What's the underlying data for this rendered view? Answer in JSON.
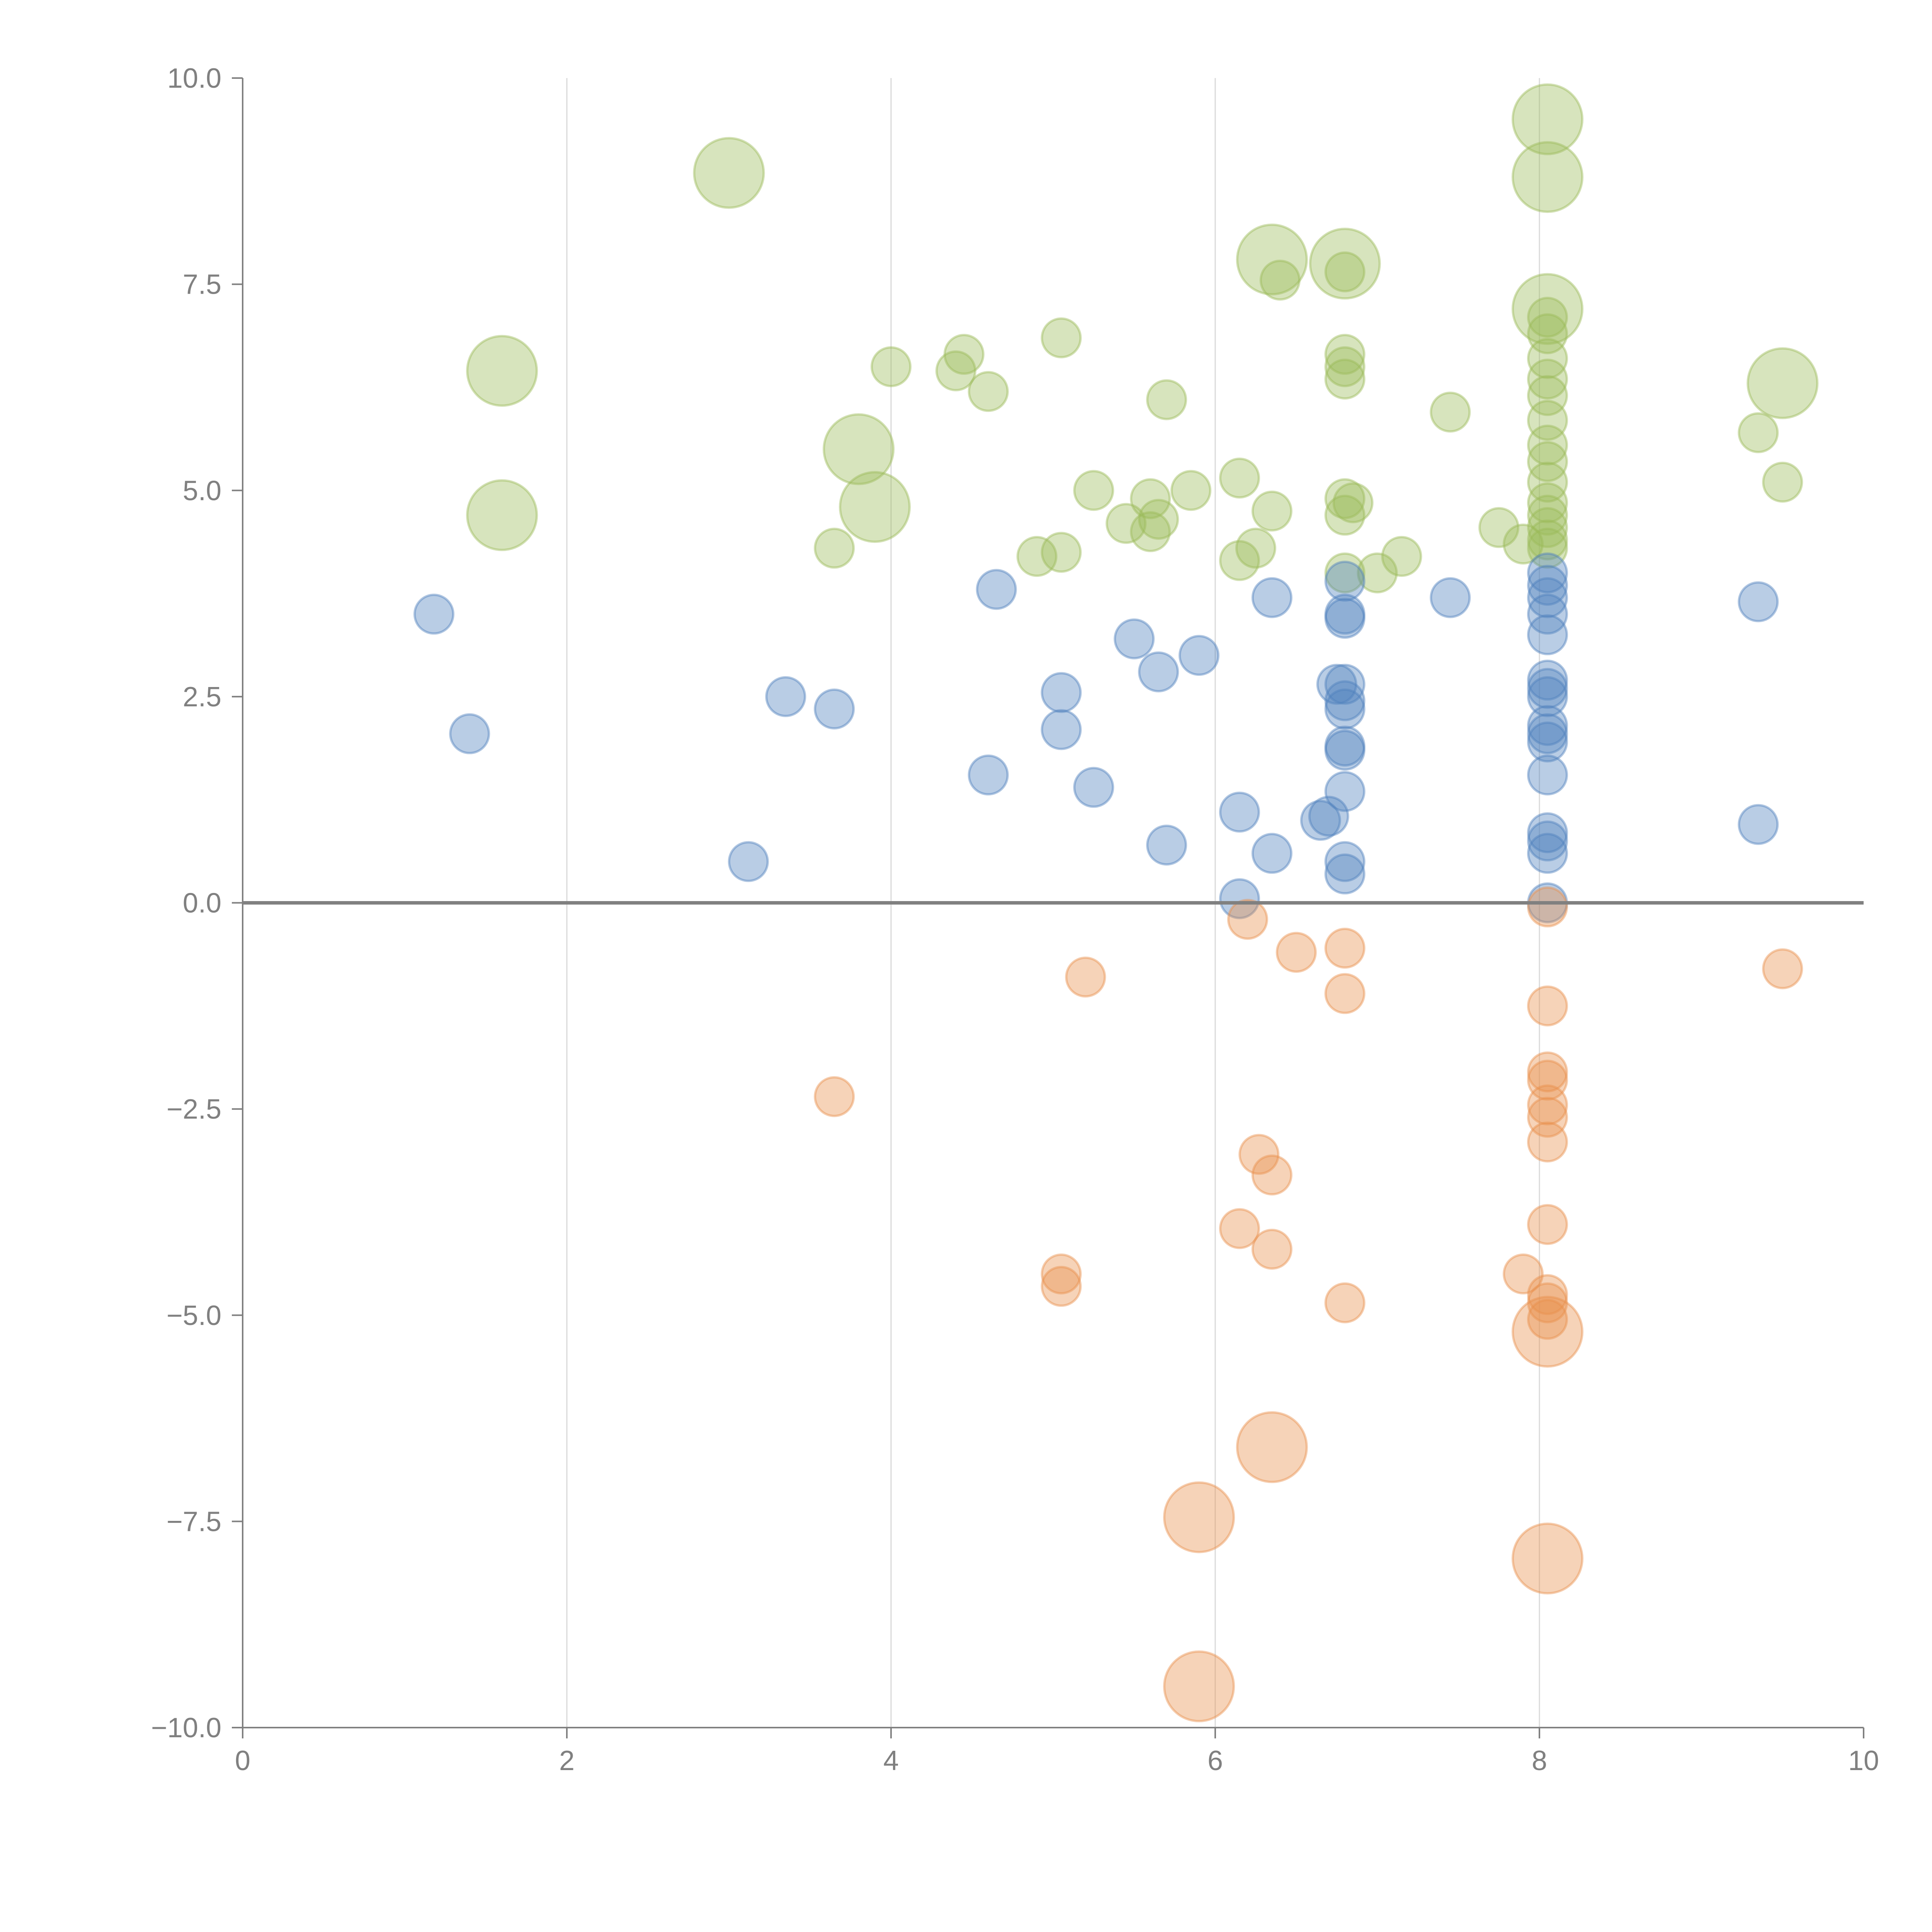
{
  "chart_data": {
    "type": "scatter",
    "subtype": "bubble",
    "title": "",
    "xlabel": "",
    "ylabel": "",
    "xlim": [
      0,
      10
    ],
    "ylim": [
      -10,
      10
    ],
    "x_ticks": [
      "0",
      "2",
      "4",
      "6",
      "8",
      "10"
    ],
    "y_ticks": [
      "10.0",
      "7.5",
      "5.0",
      "2.5",
      "0.0",
      "−2.5",
      "−5.0",
      "−7.5",
      "−10.0"
    ],
    "grid": "vertical",
    "legend": "none",
    "series": [
      {
        "name": "green",
        "color": "#9bbb59",
        "points": [
          {
            "x": 3.0,
            "y": 8.85,
            "s": 3
          },
          {
            "x": 1.6,
            "y": 6.45,
            "s": 3
          },
          {
            "x": 1.6,
            "y": 4.7,
            "s": 3
          },
          {
            "x": 3.8,
            "y": 5.5,
            "s": 3
          },
          {
            "x": 3.9,
            "y": 4.8,
            "s": 3
          },
          {
            "x": 3.65,
            "y": 4.3,
            "s": 1
          },
          {
            "x": 4.0,
            "y": 6.5,
            "s": 1
          },
          {
            "x": 4.45,
            "y": 6.65,
            "s": 1
          },
          {
            "x": 4.4,
            "y": 6.45,
            "s": 1
          },
          {
            "x": 4.6,
            "y": 6.2,
            "s": 1
          },
          {
            "x": 5.05,
            "y": 6.85,
            "s": 1
          },
          {
            "x": 5.7,
            "y": 6.1,
            "s": 1
          },
          {
            "x": 5.25,
            "y": 5.0,
            "s": 1
          },
          {
            "x": 5.6,
            "y": 4.9,
            "s": 1
          },
          {
            "x": 5.85,
            "y": 5.0,
            "s": 1
          },
          {
            "x": 5.45,
            "y": 4.6,
            "s": 1
          },
          {
            "x": 5.6,
            "y": 4.5,
            "s": 1
          },
          {
            "x": 5.65,
            "y": 4.65,
            "s": 1
          },
          {
            "x": 4.9,
            "y": 4.2,
            "s": 1
          },
          {
            "x": 5.05,
            "y": 4.25,
            "s": 1
          },
          {
            "x": 6.15,
            "y": 5.15,
            "s": 1
          },
          {
            "x": 6.35,
            "y": 4.75,
            "s": 1
          },
          {
            "x": 6.15,
            "y": 4.15,
            "s": 1
          },
          {
            "x": 6.25,
            "y": 4.3,
            "s": 1
          },
          {
            "x": 6.35,
            "y": 7.8,
            "s": 3
          },
          {
            "x": 6.4,
            "y": 7.55,
            "s": 1
          },
          {
            "x": 6.8,
            "y": 7.75,
            "s": 3
          },
          {
            "x": 6.8,
            "y": 7.65,
            "s": 1
          },
          {
            "x": 6.8,
            "y": 6.65,
            "s": 1
          },
          {
            "x": 6.8,
            "y": 6.5,
            "s": 1
          },
          {
            "x": 6.8,
            "y": 6.35,
            "s": 1
          },
          {
            "x": 6.8,
            "y": 4.9,
            "s": 1
          },
          {
            "x": 6.85,
            "y": 4.85,
            "s": 1
          },
          {
            "x": 6.8,
            "y": 4.7,
            "s": 1
          },
          {
            "x": 6.8,
            "y": 4.0,
            "s": 1
          },
          {
            "x": 7.0,
            "y": 4.0,
            "s": 1
          },
          {
            "x": 7.15,
            "y": 4.2,
            "s": 1
          },
          {
            "x": 7.45,
            "y": 5.95,
            "s": 1
          },
          {
            "x": 7.75,
            "y": 4.55,
            "s": 1
          },
          {
            "x": 8.05,
            "y": 9.5,
            "s": 3
          },
          {
            "x": 8.05,
            "y": 8.8,
            "s": 3
          },
          {
            "x": 8.05,
            "y": 7.2,
            "s": 3
          },
          {
            "x": 8.05,
            "y": 7.1,
            "s": 1
          },
          {
            "x": 8.05,
            "y": 6.9,
            "s": 1
          },
          {
            "x": 8.05,
            "y": 6.6,
            "s": 1
          },
          {
            "x": 8.05,
            "y": 6.35,
            "s": 1
          },
          {
            "x": 8.05,
            "y": 6.15,
            "s": 1
          },
          {
            "x": 8.05,
            "y": 5.85,
            "s": 1
          },
          {
            "x": 8.05,
            "y": 5.55,
            "s": 1
          },
          {
            "x": 8.05,
            "y": 5.35,
            "s": 1
          },
          {
            "x": 8.05,
            "y": 5.1,
            "s": 1
          },
          {
            "x": 8.05,
            "y": 4.85,
            "s": 1
          },
          {
            "x": 8.05,
            "y": 4.7,
            "s": 1
          },
          {
            "x": 8.05,
            "y": 4.55,
            "s": 1
          },
          {
            "x": 8.05,
            "y": 4.4,
            "s": 1
          },
          {
            "x": 8.05,
            "y": 4.3,
            "s": 1
          },
          {
            "x": 7.9,
            "y": 4.35,
            "s": 1
          },
          {
            "x": 9.5,
            "y": 6.3,
            "s": 3
          },
          {
            "x": 9.35,
            "y": 5.7,
            "s": 1
          },
          {
            "x": 9.5,
            "y": 5.1,
            "s": 1
          }
        ]
      },
      {
        "name": "blue",
        "color": "#4f81bd",
        "points": [
          {
            "x": 1.18,
            "y": 3.5,
            "s": 1
          },
          {
            "x": 1.4,
            "y": 2.05,
            "s": 1
          },
          {
            "x": 3.12,
            "y": 0.5,
            "s": 1
          },
          {
            "x": 3.35,
            "y": 2.5,
            "s": 1
          },
          {
            "x": 3.65,
            "y": 2.35,
            "s": 1
          },
          {
            "x": 4.65,
            "y": 3.8,
            "s": 1
          },
          {
            "x": 4.6,
            "y": 1.55,
            "s": 1
          },
          {
            "x": 5.05,
            "y": 2.55,
            "s": 1
          },
          {
            "x": 5.05,
            "y": 2.1,
            "s": 1
          },
          {
            "x": 5.25,
            "y": 1.4,
            "s": 1
          },
          {
            "x": 5.5,
            "y": 3.2,
            "s": 1
          },
          {
            "x": 5.65,
            "y": 2.8,
            "s": 1
          },
          {
            "x": 5.9,
            "y": 3.0,
            "s": 1
          },
          {
            "x": 5.7,
            "y": 0.7,
            "s": 1
          },
          {
            "x": 6.15,
            "y": 1.1,
            "s": 1
          },
          {
            "x": 6.35,
            "y": 0.6,
            "s": 1
          },
          {
            "x": 6.15,
            "y": 0.05,
            "s": 1
          },
          {
            "x": 6.35,
            "y": 3.7,
            "s": 1
          },
          {
            "x": 6.8,
            "y": 3.9,
            "s": 1
          },
          {
            "x": 6.8,
            "y": 3.5,
            "s": 1
          },
          {
            "x": 6.8,
            "y": 3.45,
            "s": 1
          },
          {
            "x": 6.75,
            "y": 2.65,
            "s": 1
          },
          {
            "x": 6.8,
            "y": 2.65,
            "s": 1
          },
          {
            "x": 6.8,
            "y": 2.45,
            "s": 1
          },
          {
            "x": 6.8,
            "y": 2.35,
            "s": 1
          },
          {
            "x": 6.8,
            "y": 1.9,
            "s": 1
          },
          {
            "x": 6.8,
            "y": 1.85,
            "s": 1
          },
          {
            "x": 6.8,
            "y": 1.35,
            "s": 1
          },
          {
            "x": 6.65,
            "y": 1.0,
            "s": 1
          },
          {
            "x": 6.7,
            "y": 1.05,
            "s": 1
          },
          {
            "x": 6.8,
            "y": 0.5,
            "s": 1
          },
          {
            "x": 6.8,
            "y": 0.35,
            "s": 1
          },
          {
            "x": 7.45,
            "y": 3.7,
            "s": 1
          },
          {
            "x": 8.05,
            "y": 4.0,
            "s": 1
          },
          {
            "x": 8.05,
            "y": 3.85,
            "s": 1
          },
          {
            "x": 8.05,
            "y": 3.7,
            "s": 1
          },
          {
            "x": 8.05,
            "y": 3.5,
            "s": 1
          },
          {
            "x": 8.05,
            "y": 3.25,
            "s": 1
          },
          {
            "x": 8.05,
            "y": 2.7,
            "s": 1
          },
          {
            "x": 8.05,
            "y": 2.6,
            "s": 1
          },
          {
            "x": 8.05,
            "y": 2.5,
            "s": 1
          },
          {
            "x": 8.05,
            "y": 2.15,
            "s": 1
          },
          {
            "x": 8.05,
            "y": 2.05,
            "s": 1
          },
          {
            "x": 8.05,
            "y": 1.95,
            "s": 1
          },
          {
            "x": 8.05,
            "y": 1.55,
            "s": 1
          },
          {
            "x": 8.05,
            "y": 0.85,
            "s": 1
          },
          {
            "x": 8.05,
            "y": 0.75,
            "s": 1
          },
          {
            "x": 8.05,
            "y": 0.6,
            "s": 1
          },
          {
            "x": 8.05,
            "y": 0.0,
            "s": 1
          },
          {
            "x": 9.35,
            "y": 3.65,
            "s": 1
          },
          {
            "x": 9.35,
            "y": 0.95,
            "s": 1
          }
        ]
      },
      {
        "name": "orange",
        "color": "#e8914e",
        "points": [
          {
            "x": 3.65,
            "y": -2.35,
            "s": 1
          },
          {
            "x": 5.2,
            "y": -0.9,
            "s": 1
          },
          {
            "x": 5.05,
            "y": -4.5,
            "s": 1
          },
          {
            "x": 5.05,
            "y": -4.65,
            "s": 1
          },
          {
            "x": 6.2,
            "y": -0.2,
            "s": 1
          },
          {
            "x": 6.5,
            "y": -0.6,
            "s": 1
          },
          {
            "x": 6.8,
            "y": -0.55,
            "s": 1
          },
          {
            "x": 6.8,
            "y": -1.1,
            "s": 1
          },
          {
            "x": 6.27,
            "y": -3.05,
            "s": 1
          },
          {
            "x": 6.35,
            "y": -3.3,
            "s": 1
          },
          {
            "x": 6.15,
            "y": -3.95,
            "s": 1
          },
          {
            "x": 6.35,
            "y": -4.2,
            "s": 1
          },
          {
            "x": 6.8,
            "y": -4.85,
            "s": 1
          },
          {
            "x": 6.35,
            "y": -6.6,
            "s": 3
          },
          {
            "x": 5.9,
            "y": -7.45,
            "s": 3
          },
          {
            "x": 5.9,
            "y": -9.5,
            "s": 3
          },
          {
            "x": 7.9,
            "y": -4.5,
            "s": 1
          },
          {
            "x": 8.05,
            "y": -0.05,
            "s": 1
          },
          {
            "x": 8.05,
            "y": -1.25,
            "s": 1
          },
          {
            "x": 8.05,
            "y": -2.05,
            "s": 1
          },
          {
            "x": 8.05,
            "y": -2.15,
            "s": 1
          },
          {
            "x": 8.05,
            "y": -2.45,
            "s": 1
          },
          {
            "x": 8.05,
            "y": -2.6,
            "s": 1
          },
          {
            "x": 8.05,
            "y": -2.9,
            "s": 1
          },
          {
            "x": 8.05,
            "y": -3.9,
            "s": 1
          },
          {
            "x": 8.05,
            "y": -4.75,
            "s": 1
          },
          {
            "x": 8.05,
            "y": -4.85,
            "s": 1
          },
          {
            "x": 8.05,
            "y": -5.05,
            "s": 1
          },
          {
            "x": 8.05,
            "y": -5.2,
            "s": 3
          },
          {
            "x": 8.05,
            "y": -7.95,
            "s": 3
          },
          {
            "x": 9.5,
            "y": -0.8,
            "s": 1
          }
        ]
      }
    ]
  }
}
